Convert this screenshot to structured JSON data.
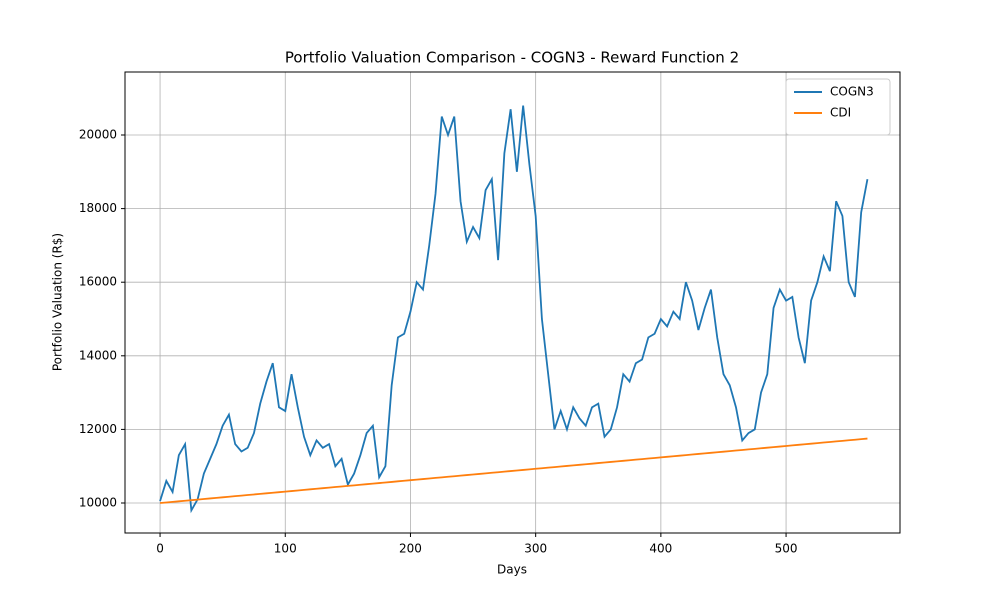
{
  "chart_data": {
    "type": "line",
    "title": "Portfolio Valuation Comparison - COGN3 - Reward Function 2",
    "x_label": "Days",
    "y_label": "Portfolio Valuation (R$)",
    "x": [
      0,
      5,
      10,
      15,
      20,
      25,
      30,
      35,
      40,
      45,
      50,
      55,
      60,
      65,
      70,
      75,
      80,
      85,
      90,
      95,
      100,
      105,
      110,
      115,
      120,
      125,
      130,
      135,
      140,
      145,
      150,
      155,
      160,
      165,
      170,
      175,
      180,
      185,
      190,
      195,
      200,
      205,
      210,
      215,
      220,
      225,
      230,
      235,
      240,
      245,
      250,
      255,
      260,
      265,
      270,
      275,
      280,
      285,
      290,
      295,
      300,
      305,
      310,
      315,
      320,
      325,
      330,
      335,
      340,
      345,
      350,
      355,
      360,
      365,
      370,
      375,
      380,
      385,
      390,
      395,
      400,
      405,
      410,
      415,
      420,
      425,
      430,
      435,
      440,
      445,
      450,
      455,
      460,
      465,
      470,
      475,
      480,
      485,
      490,
      495,
      500,
      505,
      510,
      515,
      520,
      525,
      530,
      535,
      540,
      545,
      550,
      555,
      560,
      565
    ],
    "series": [
      {
        "name": "COGN3",
        "color": "#1f77b4",
        "values": [
          10050,
          10600,
          10300,
          11300,
          11600,
          9800,
          10100,
          10800,
          11200,
          11600,
          12100,
          12400,
          11600,
          11400,
          11500,
          11900,
          12700,
          13300,
          13800,
          12600,
          12500,
          13500,
          12600,
          11800,
          11300,
          11700,
          11500,
          11600,
          11000,
          11200,
          10500,
          10800,
          11300,
          11900,
          12100,
          10700,
          11000,
          13200,
          14500,
          14600,
          15200,
          16000,
          15800,
          17000,
          18400,
          20500,
          20000,
          20500,
          18200,
          17100,
          17500,
          17200,
          18500,
          18800,
          16600,
          19500,
          20700,
          19000,
          20800,
          19200,
          17800,
          15000,
          13500,
          12000,
          12500,
          12000,
          12600,
          12300,
          12100,
          12600,
          12700,
          11800,
          12000,
          12600,
          13500,
          13300,
          13800,
          13900,
          14500,
          14600,
          15000,
          14800,
          15200,
          15000,
          16000,
          15500,
          14700,
          15300,
          15800,
          14500,
          13500,
          13200,
          12600,
          11700,
          11900,
          12000,
          13000,
          13500,
          15300,
          15800,
          15500,
          15600,
          14500,
          13800,
          15500,
          16000,
          16700,
          16300,
          18200,
          17800,
          16000,
          15600,
          17900,
          18800
        ]
      },
      {
        "name": "CDI",
        "color": "#ff7f0e",
        "values": [
          10000,
          10015,
          10031,
          10046,
          10062,
          10077,
          10093,
          10108,
          10124,
          10139,
          10155,
          10170,
          10186,
          10201,
          10217,
          10232,
          10248,
          10263,
          10279,
          10294,
          10310,
          10325,
          10341,
          10356,
          10372,
          10387,
          10403,
          10418,
          10434,
          10449,
          10465,
          10480,
          10496,
          10511,
          10527,
          10542,
          10558,
          10573,
          10589,
          10604,
          10620,
          10635,
          10651,
          10666,
          10682,
          10697,
          10713,
          10728,
          10744,
          10759,
          10775,
          10790,
          10806,
          10821,
          10837,
          10852,
          10868,
          10883,
          10899,
          10914,
          10930,
          10945,
          10961,
          10976,
          10992,
          11007,
          11023,
          11038,
          11054,
          11069,
          11085,
          11100,
          11116,
          11131,
          11147,
          11162,
          11178,
          11193,
          11209,
          11224,
          11240,
          11255,
          11271,
          11286,
          11302,
          11317,
          11333,
          11348,
          11364,
          11379,
          11395,
          11410,
          11426,
          11441,
          11457,
          11472,
          11488,
          11503,
          11519,
          11534,
          11550,
          11565,
          11581,
          11596,
          11612,
          11627,
          11643,
          11658,
          11674,
          11689,
          11705,
          11720,
          11736,
          11751
        ]
      }
    ],
    "xlim": [
      -28,
      591
    ],
    "ylim": [
      9185,
      21712
    ],
    "xticks": [
      0,
      100,
      200,
      300,
      400,
      500
    ],
    "yticks": [
      10000,
      12000,
      14000,
      16000,
      18000,
      20000
    ],
    "grid": true,
    "legend": "upper right"
  }
}
